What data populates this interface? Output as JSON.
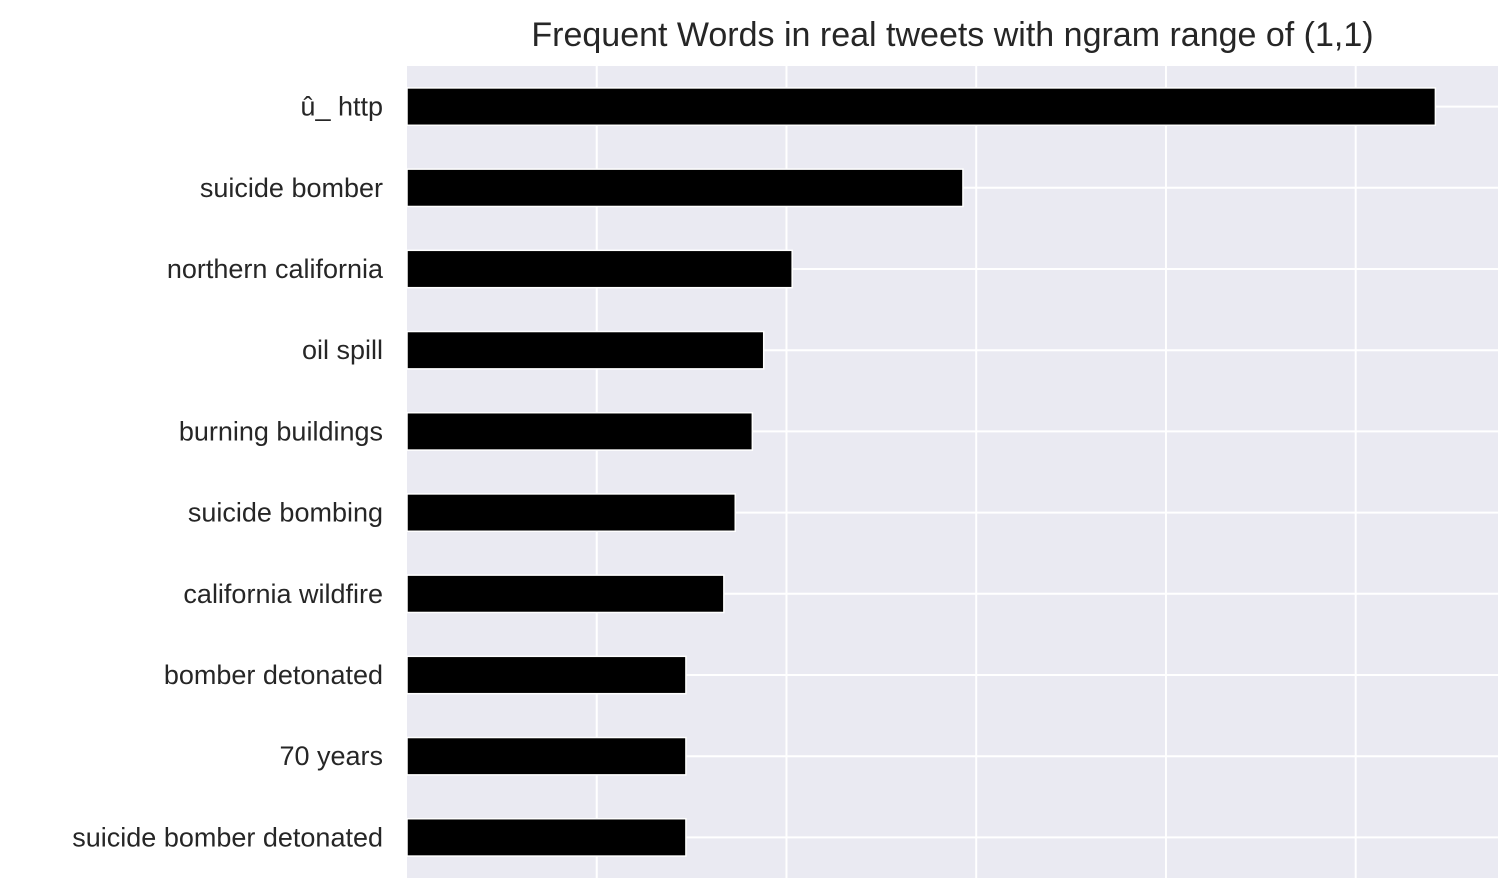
{
  "chart_data": {
    "type": "bar",
    "orientation": "horizontal",
    "title": "Frequent Words in real tweets with ngram range of (1,1)",
    "xlabel": "",
    "ylabel": "",
    "categories": [
      "û_ http",
      "suicide bomber",
      "northern california",
      "oil spill",
      "burning buildings",
      "suicide bombing",
      "california wildfire",
      "bomber detonated",
      "70 years",
      "suicide bomber detonated"
    ],
    "values": [
      54.2,
      29.3,
      20.3,
      18.8,
      18.2,
      17.3,
      16.7,
      14.7,
      14.7,
      14.7
    ],
    "xlim": [
      0,
      57.5
    ],
    "x_gridlines": [
      10,
      20,
      30,
      40,
      50
    ],
    "grid": true,
    "legend": "none",
    "colors": {
      "bar": "#000000",
      "bar_edge": "#ffffff",
      "background": "#eaeaf2",
      "grid": "#ffffff",
      "text": "#262626"
    }
  }
}
